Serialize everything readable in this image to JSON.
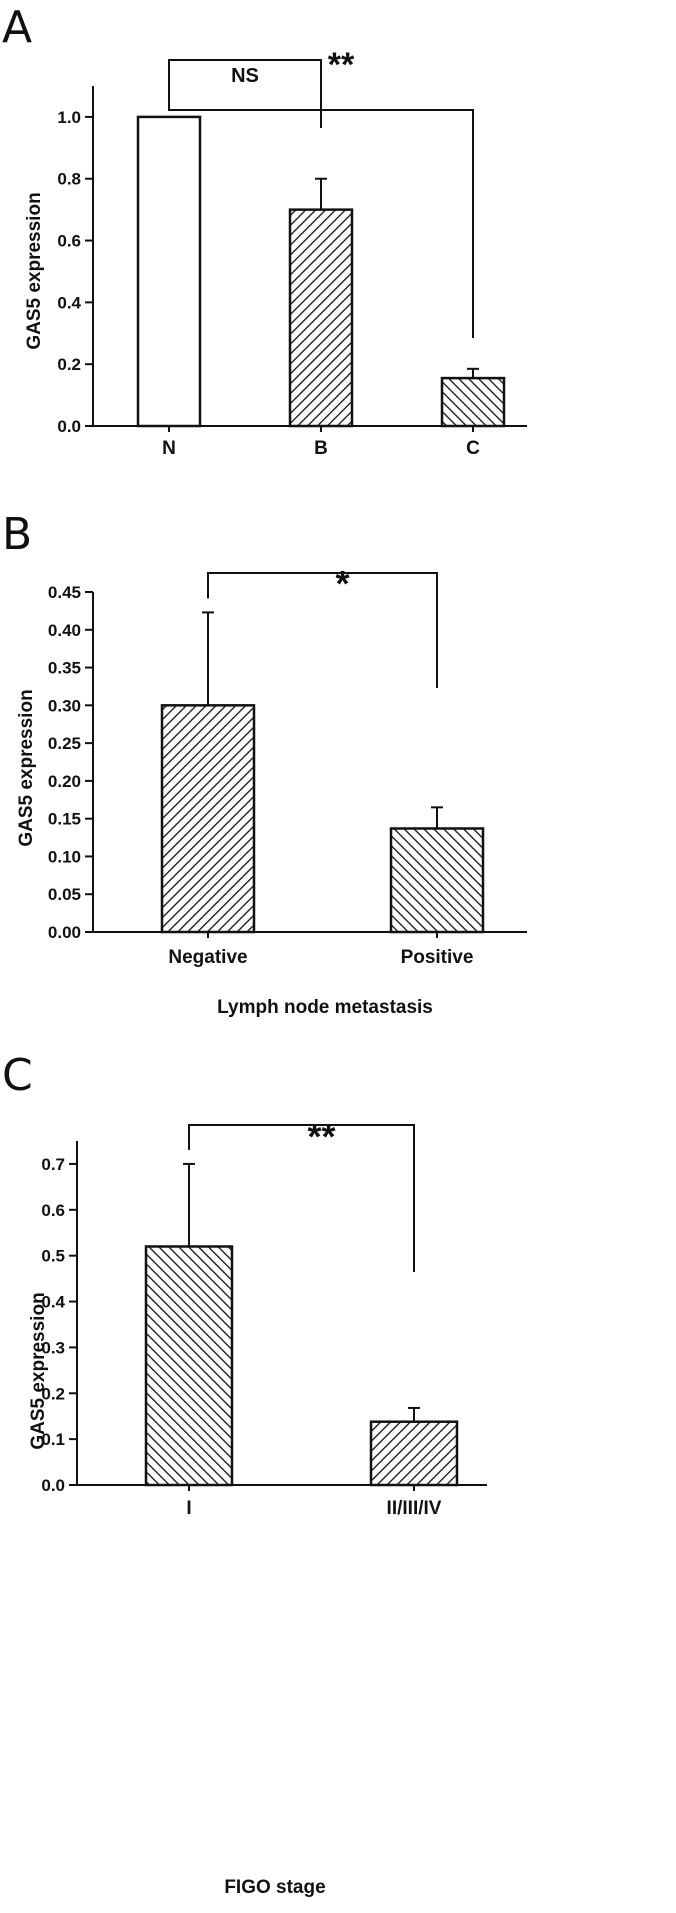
{
  "chart_data": [
    {
      "panel": "A",
      "type": "bar",
      "categories": [
        "N",
        "B",
        "C"
      ],
      "values": [
        1.0,
        0.7,
        0.155
      ],
      "errors": [
        0,
        0.1,
        0.03
      ],
      "patterns": [
        "none",
        "forward",
        "backward"
      ],
      "ylabel": "GAS5 expression",
      "xlabel": "",
      "ylim": [
        0,
        1.1
      ],
      "yticks": [
        "0.0",
        "0.2",
        "0.4",
        "0.6",
        "0.8",
        "1.0"
      ],
      "brackets": [
        {
          "from": 0,
          "to": 1,
          "label": "NS"
        },
        {
          "from": 0,
          "to": 2,
          "label": "**"
        }
      ]
    },
    {
      "panel": "B",
      "type": "bar",
      "categories": [
        "Negative",
        "Positive"
      ],
      "values": [
        0.3,
        0.137
      ],
      "errors": [
        0.123,
        0.028
      ],
      "patterns": [
        "forward",
        "backward"
      ],
      "ylabel": "GAS5 expression",
      "xlabel": "Lymph node metastasis",
      "ylim": [
        0,
        0.45
      ],
      "yticks": [
        "0.00",
        "0.05",
        "0.10",
        "0.15",
        "0.20",
        "0.25",
        "0.30",
        "0.35",
        "0.40",
        "0.45"
      ],
      "brackets": [
        {
          "from": 0,
          "to": 1,
          "label": "*"
        }
      ]
    },
    {
      "panel": "C",
      "type": "bar",
      "categories": [
        "I",
        "II/III/IV"
      ],
      "values": [
        0.52,
        0.138
      ],
      "errors": [
        0.18,
        0.03
      ],
      "patterns": [
        "backward",
        "forward"
      ],
      "ylabel": "GAS5 expression",
      "xlabel": "FIGO stage",
      "ylim": [
        0,
        0.75
      ],
      "yticks": [
        "0.0",
        "0.1",
        "0.2",
        "0.3",
        "0.4",
        "0.5",
        "0.6",
        "0.7"
      ],
      "brackets": [
        {
          "from": 0,
          "to": 1,
          "label": "**"
        }
      ]
    }
  ]
}
